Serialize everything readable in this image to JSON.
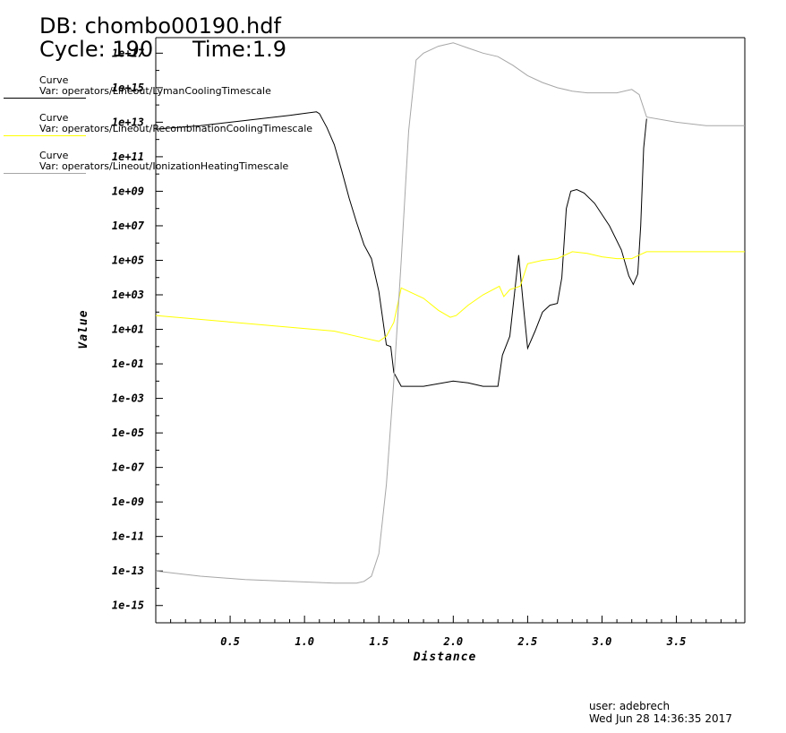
{
  "header": {
    "db_line": "DB: chombo00190.hdf",
    "cycle_label": "Cycle: 190",
    "time_label": "Time:1.9"
  },
  "legend": [
    {
      "title": "Curve",
      "var": "Var: operators/Lineout/LymanCoolingTimescale",
      "color": "#000000"
    },
    {
      "title": "Curve",
      "var": "Var: operators/Lineout/RecombinationCoolingTimescale",
      "color": "#ffff00"
    },
    {
      "title": "Curve",
      "var": "Var: operators/Lineout/IonizationHeatingTimescale",
      "color": "#a6a6a6"
    }
  ],
  "footer": {
    "user": "user: adebrech",
    "date": "Wed Jun 28 14:36:35 2017"
  },
  "chart_data": {
    "type": "line",
    "xlabel": "Distance",
    "ylabel": "Value",
    "xlim": [
      0.0,
      3.96
    ],
    "ylim_log10": [
      -16,
      17.9
    ],
    "y_scale": "log",
    "x_ticks": [
      0.5,
      1.0,
      1.5,
      2.0,
      2.5,
      3.0,
      3.5
    ],
    "x_tick_labels": [
      "0.5",
      "1.0",
      "1.5",
      "2.0",
      "2.5",
      "3.0",
      "3.5"
    ],
    "y_ticks_log10": [
      -15,
      -13,
      -11,
      -9,
      -7,
      -5,
      -3,
      -1,
      1,
      3,
      5,
      7,
      9,
      11,
      13,
      15,
      17
    ],
    "y_tick_labels": [
      "1e-15",
      "1e-13",
      "1e-11",
      "1e-09",
      "1e-07",
      "1e-05",
      "1e-03",
      "1e-01",
      "1e+01",
      "1e+03",
      "1e+05",
      "1e+07",
      "1e+09",
      "1e+11",
      "1e+13",
      "1e+15",
      "1e+17"
    ],
    "grid": false,
    "legend_position": "top-left",
    "series": [
      {
        "var": "LymanCoolingTimescale",
        "color": "#000000",
        "points": [
          [
            0.0,
            12.6
          ],
          [
            0.3,
            12.8
          ],
          [
            0.6,
            13.1
          ],
          [
            0.9,
            13.4
          ],
          [
            1.08,
            13.6
          ],
          [
            1.1,
            13.5
          ],
          [
            1.15,
            12.7
          ],
          [
            1.2,
            11.7
          ],
          [
            1.25,
            10.2
          ],
          [
            1.3,
            8.6
          ],
          [
            1.35,
            7.2
          ],
          [
            1.4,
            5.9
          ],
          [
            1.45,
            5.1
          ],
          [
            1.5,
            3.2
          ],
          [
            1.55,
            0.1
          ],
          [
            1.58,
            0.0
          ],
          [
            1.6,
            -1.5
          ],
          [
            1.65,
            -2.3
          ],
          [
            1.8,
            -2.3
          ],
          [
            2.0,
            -2.0
          ],
          [
            2.1,
            -2.1
          ],
          [
            2.2,
            -2.3
          ],
          [
            2.3,
            -2.3
          ],
          [
            2.33,
            -0.5
          ],
          [
            2.38,
            0.6
          ],
          [
            2.44,
            5.3
          ],
          [
            2.47,
            2.5
          ],
          [
            2.5,
            -0.1
          ],
          [
            2.55,
            0.9
          ],
          [
            2.6,
            2.0
          ],
          [
            2.65,
            2.4
          ],
          [
            2.7,
            2.5
          ],
          [
            2.73,
            4.0
          ],
          [
            2.76,
            8.0
          ],
          [
            2.79,
            9.0
          ],
          [
            2.83,
            9.1
          ],
          [
            2.88,
            8.9
          ],
          [
            2.95,
            8.3
          ],
          [
            3.05,
            7.0
          ],
          [
            3.13,
            5.6
          ],
          [
            3.18,
            4.1
          ],
          [
            3.21,
            3.6
          ],
          [
            3.24,
            4.2
          ],
          [
            3.26,
            7.0
          ],
          [
            3.28,
            11.5
          ],
          [
            3.3,
            13.2
          ]
        ]
      },
      {
        "var": "RecombinationCoolingTimescale",
        "color": "#ffff00",
        "points": [
          [
            0.0,
            1.8
          ],
          [
            0.4,
            1.5
          ],
          [
            0.8,
            1.2
          ],
          [
            1.2,
            0.9
          ],
          [
            1.4,
            0.5
          ],
          [
            1.5,
            0.3
          ],
          [
            1.55,
            0.6
          ],
          [
            1.6,
            1.4
          ],
          [
            1.65,
            3.4
          ],
          [
            1.7,
            3.2
          ],
          [
            1.8,
            2.8
          ],
          [
            1.9,
            2.1
          ],
          [
            1.98,
            1.7
          ],
          [
            2.02,
            1.8
          ],
          [
            2.1,
            2.4
          ],
          [
            2.2,
            3.0
          ],
          [
            2.31,
            3.5
          ],
          [
            2.34,
            2.9
          ],
          [
            2.38,
            3.3
          ],
          [
            2.45,
            3.5
          ],
          [
            2.5,
            4.8
          ],
          [
            2.6,
            5.0
          ],
          [
            2.7,
            5.1
          ],
          [
            2.8,
            5.5
          ],
          [
            2.9,
            5.4
          ],
          [
            3.0,
            5.2
          ],
          [
            3.1,
            5.1
          ],
          [
            3.2,
            5.1
          ],
          [
            3.25,
            5.3
          ],
          [
            3.3,
            5.5
          ],
          [
            3.6,
            5.5
          ],
          [
            3.96,
            5.5
          ]
        ]
      },
      {
        "var": "IonizationHeatingTimescale",
        "color": "#a6a6a6",
        "points": [
          [
            0.0,
            -13.0
          ],
          [
            0.3,
            -13.3
          ],
          [
            0.6,
            -13.5
          ],
          [
            0.9,
            -13.6
          ],
          [
            1.2,
            -13.7
          ],
          [
            1.35,
            -13.7
          ],
          [
            1.4,
            -13.6
          ],
          [
            1.45,
            -13.3
          ],
          [
            1.5,
            -12.0
          ],
          [
            1.55,
            -8.0
          ],
          [
            1.6,
            -2.0
          ],
          [
            1.65,
            5.0
          ],
          [
            1.7,
            12.5
          ],
          [
            1.75,
            16.6
          ],
          [
            1.8,
            17.0
          ],
          [
            1.9,
            17.4
          ],
          [
            2.0,
            17.6
          ],
          [
            2.1,
            17.3
          ],
          [
            2.2,
            17.0
          ],
          [
            2.3,
            16.8
          ],
          [
            2.4,
            16.3
          ],
          [
            2.5,
            15.7
          ],
          [
            2.6,
            15.3
          ],
          [
            2.7,
            15.0
          ],
          [
            2.8,
            14.8
          ],
          [
            2.9,
            14.7
          ],
          [
            3.0,
            14.7
          ],
          [
            3.1,
            14.7
          ],
          [
            3.2,
            14.9
          ],
          [
            3.25,
            14.6
          ],
          [
            3.3,
            13.3
          ],
          [
            3.5,
            13.0
          ],
          [
            3.7,
            12.8
          ],
          [
            3.96,
            12.8
          ]
        ]
      }
    ]
  }
}
